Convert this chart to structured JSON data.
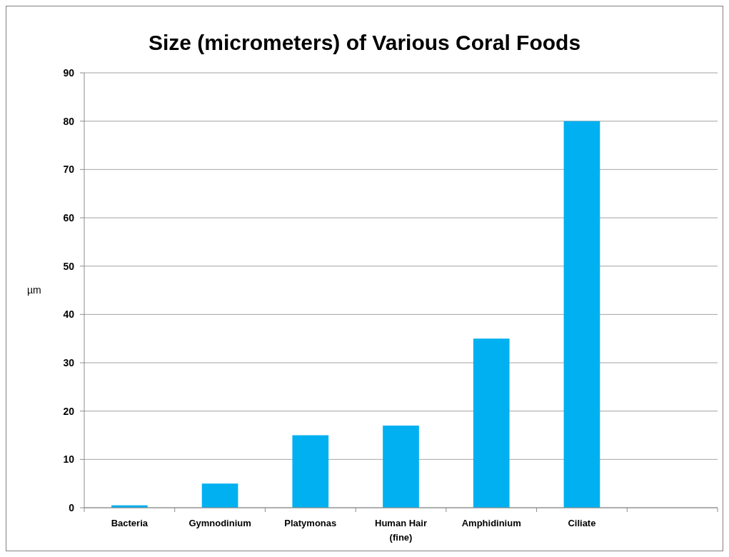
{
  "chart_data": {
    "type": "bar",
    "title": "Size (micrometers) of Various Coral Foods",
    "ylabel": "µm",
    "categories": [
      "Bacteria",
      "Gymnodinium",
      "Platymonas",
      "Human Hair\n(fine)",
      "Amphidinium",
      "Ciliate",
      null
    ],
    "values": [
      0.5,
      5,
      15,
      17,
      35,
      80,
      null
    ],
    "color": "#00b0f0",
    "ylim": [
      0,
      90
    ],
    "yticks": [
      0,
      10,
      20,
      30,
      40,
      50,
      60,
      70,
      80,
      90
    ],
    "grid": "y"
  }
}
